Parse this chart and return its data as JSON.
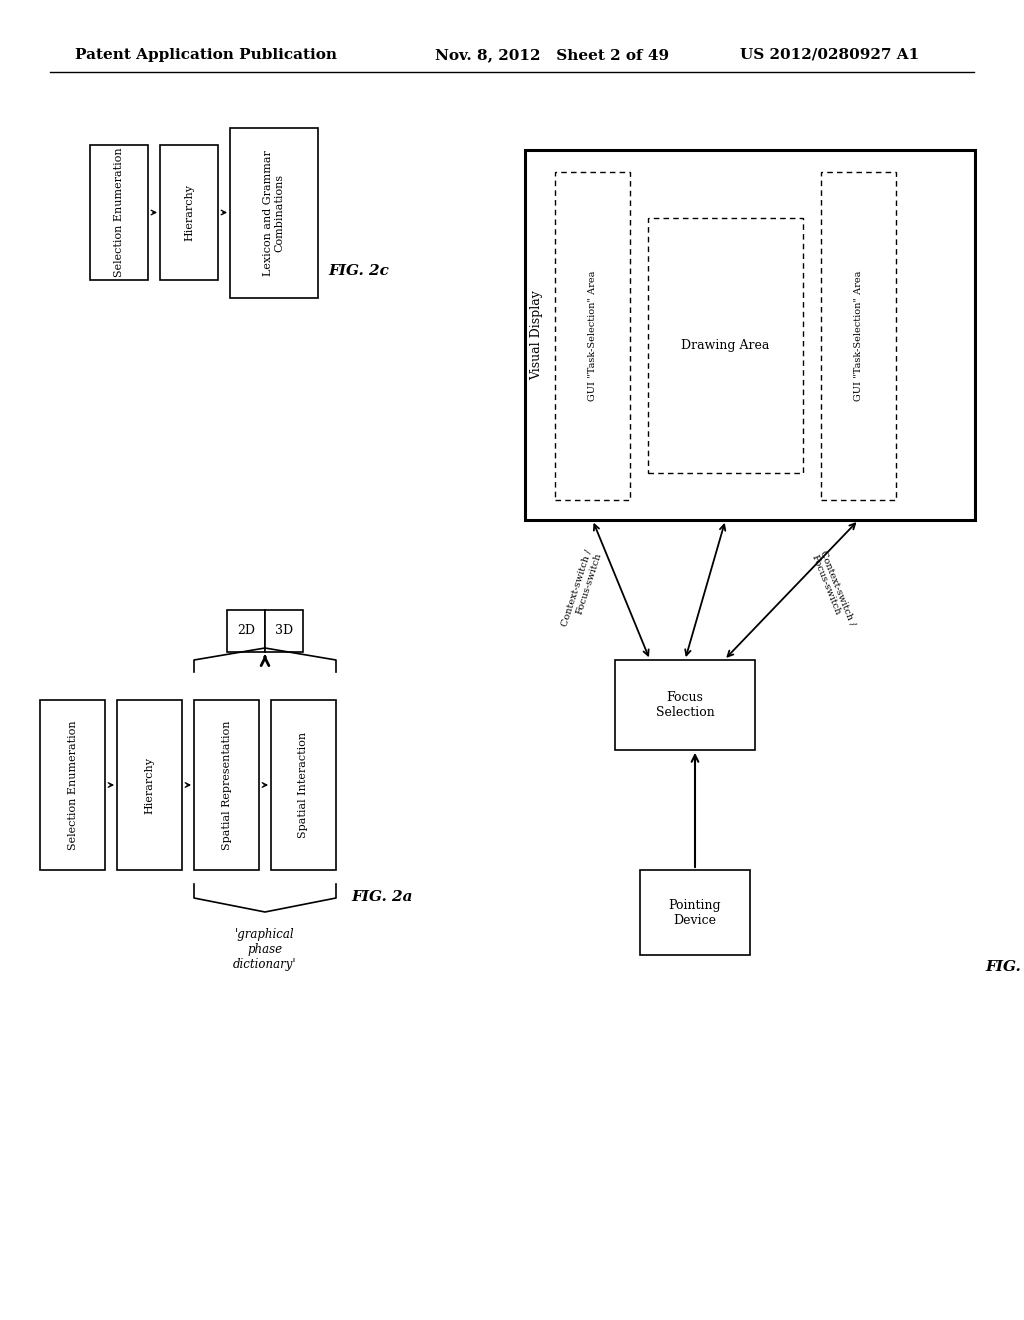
{
  "header_left": "Patent Application Publication",
  "header_mid": "Nov. 8, 2012   Sheet 2 of 49",
  "header_right": "US 2012/0280927 A1",
  "bg_color": "#ffffff"
}
